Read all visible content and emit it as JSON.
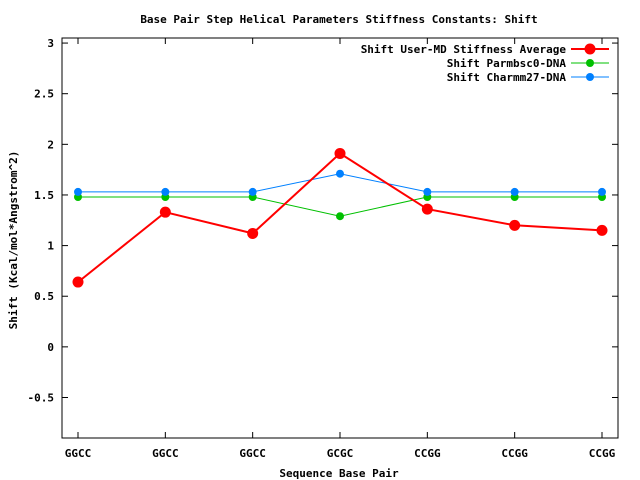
{
  "chart_data": {
    "type": "line",
    "title": "Base Pair Step Helical Parameters Stiffness Constants: Shift",
    "xlabel": "Sequence Base Pair",
    "ylabel": "Shift (Kcal/mol*Angstrom^2)",
    "categories": [
      "GGCC",
      "GGCC",
      "GGCC",
      "GCGC",
      "CCGG",
      "CCGG",
      "CCGG"
    ],
    "ylim": [
      -0.9,
      3.05
    ],
    "yticks": [
      -0.5,
      0,
      0.5,
      1,
      1.5,
      2,
      2.5,
      3
    ],
    "ytick_labels": [
      "-0.5",
      "0",
      "0.5",
      "1",
      "1.5",
      "2",
      "2.5",
      "3"
    ],
    "grid": false,
    "legend_position": "top-right",
    "series": [
      {
        "name": "Shift User-MD Stiffness Average",
        "color": "#ff0000",
        "values": [
          0.64,
          1.33,
          1.12,
          1.91,
          1.36,
          1.2,
          1.15
        ]
      },
      {
        "name": "Shift Parmbsc0-DNA",
        "color": "#00c000",
        "values": [
          1.48,
          1.48,
          1.48,
          1.29,
          1.48,
          1.48,
          1.48
        ]
      },
      {
        "name": "Shift Charmm27-DNA",
        "color": "#0080ff",
        "values": [
          1.53,
          1.53,
          1.53,
          1.71,
          1.53,
          1.53,
          1.53
        ]
      }
    ]
  }
}
